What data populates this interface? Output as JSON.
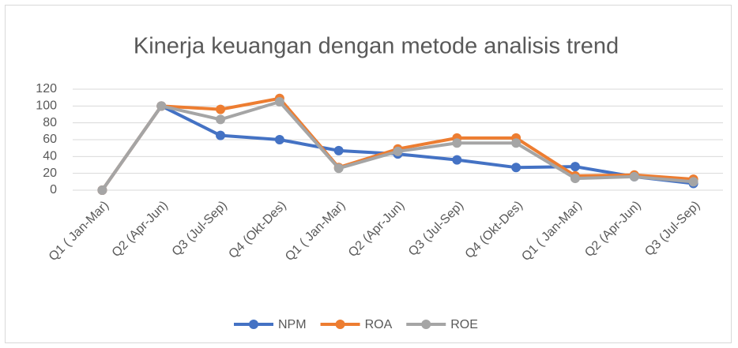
{
  "chart_data": {
    "type": "line",
    "title": "Kinerja keuangan dengan metode analisis trend",
    "categories": [
      "Q1 ( Jan-Mar)",
      "Q2 (Apr-Jun)",
      "Q3 (Jul-Sep)",
      "Q4 (Okt-Des)",
      "Q1 ( Jan-Mar)",
      "Q2 (Apr-Jun)",
      "Q3 (Jul-Sep)",
      "Q4 (Okt-Des)",
      "Q1 ( Jan-Mar)",
      "Q2 (Apr-Jun)",
      "Q3 (Jul-Sep)"
    ],
    "series": [
      {
        "name": "NPM",
        "color": "#4472c4",
        "values": [
          0,
          100,
          65,
          60,
          47,
          43,
          36,
          27,
          28,
          16,
          8
        ]
      },
      {
        "name": "ROA",
        "color": "#ed7d31",
        "values": [
          0,
          100,
          96,
          109,
          27,
          49,
          62,
          62,
          17,
          18,
          13
        ]
      },
      {
        "name": "ROE",
        "color": "#a5a5a5",
        "values": [
          0,
          100,
          84,
          105,
          26,
          46,
          56,
          56,
          14,
          16,
          10
        ]
      }
    ],
    "ylim": [
      0,
      120
    ],
    "yticks": [
      0,
      20,
      40,
      60,
      80,
      100,
      120
    ],
    "grid": true,
    "legend": "bottom"
  }
}
